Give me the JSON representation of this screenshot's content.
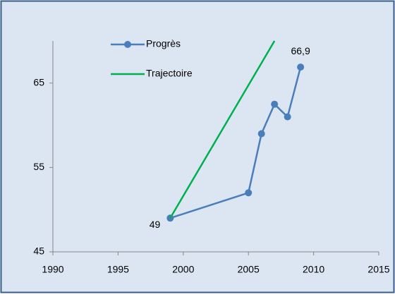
{
  "chart_data": {
    "type": "line",
    "xlim": [
      1990,
      2015
    ],
    "xticks": [
      1990,
      1995,
      2000,
      2005,
      2010,
      2015
    ],
    "ylim": [
      45,
      70
    ],
    "yticks": [
      45,
      55,
      65
    ],
    "legend": "top-left",
    "series": [
      {
        "name": "Progrès",
        "color": "#4a7ebb",
        "marker": "circle",
        "x": [
          1999,
          2005,
          2006,
          2007,
          2008,
          2009
        ],
        "values": [
          49,
          52,
          59,
          62.5,
          61,
          66.9
        ],
        "value_labels": [
          "49",
          null,
          null,
          null,
          null,
          "66,9"
        ]
      },
      {
        "name": "Trajectoire",
        "color": "#00b050",
        "marker": "none",
        "x": [
          1999,
          2007
        ],
        "values": [
          49,
          70
        ]
      }
    ]
  }
}
